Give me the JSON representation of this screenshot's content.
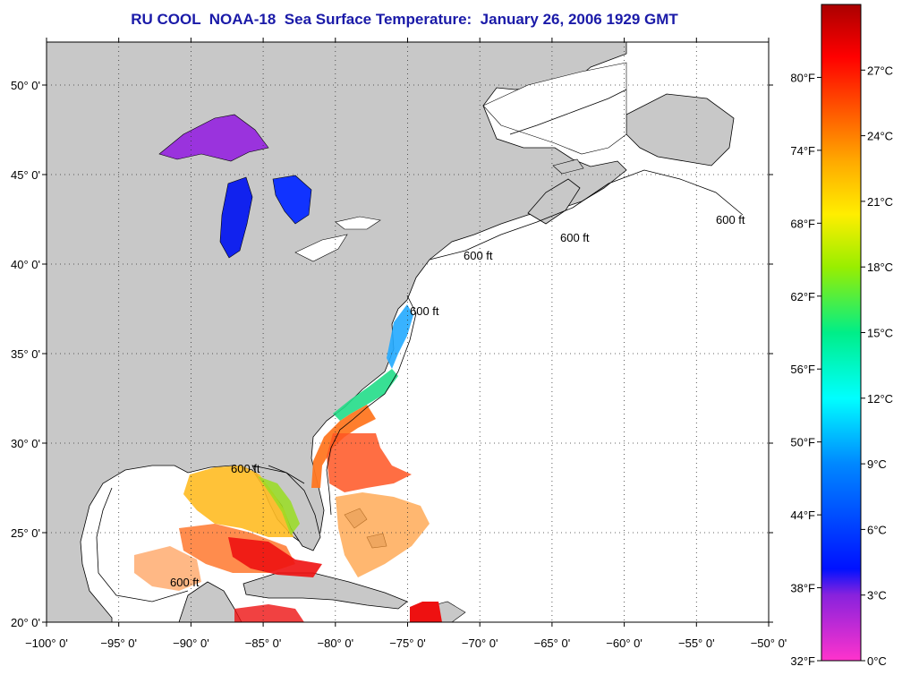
{
  "title": "RU COOL  NOAA-18  Sea Surface Temperature:  January 26, 2006 1929 GMT",
  "map": {
    "lon_range": [
      -100,
      -50
    ],
    "lat_range": [
      20,
      52.4
    ],
    "grid": "dotted",
    "lon_ticks": [
      {
        "value": -100,
        "label": "−100° 0'"
      },
      {
        "value": -95,
        "label": "−95° 0'"
      },
      {
        "value": -90,
        "label": "−90° 0'"
      },
      {
        "value": -85,
        "label": "−85° 0'"
      },
      {
        "value": -80,
        "label": "−80° 0'"
      },
      {
        "value": -75,
        "label": "−75° 0'"
      },
      {
        "value": -70,
        "label": "−70° 0'"
      },
      {
        "value": -65,
        "label": "−65° 0'"
      },
      {
        "value": -60,
        "label": "−60° 0'"
      },
      {
        "value": -55,
        "label": "−55° 0'"
      },
      {
        "value": -50,
        "label": "−50° 0'"
      }
    ],
    "lat_ticks": [
      {
        "value": 20,
        "label": "20° 0'"
      },
      {
        "value": 25,
        "label": "25° 0'"
      },
      {
        "value": 30,
        "label": "30° 0'"
      },
      {
        "value": 35,
        "label": "35° 0'"
      },
      {
        "value": 40,
        "label": "40° 0'"
      },
      {
        "value": 45,
        "label": "45° 0'"
      },
      {
        "value": 50,
        "label": "50° 0'"
      }
    ],
    "contour_label": "600 ft",
    "colors": {
      "land": "#c8c8c8",
      "ocean": "#ffffff"
    }
  },
  "colorbar": {
    "celsius_range": [
      0,
      30
    ],
    "celsius_labels": [
      {
        "value": 0,
        "label": "0°C"
      },
      {
        "value": 3,
        "label": "3°C"
      },
      {
        "value": 6,
        "label": "6°C"
      },
      {
        "value": 9,
        "label": "9°C"
      },
      {
        "value": 12,
        "label": "12°C"
      },
      {
        "value": 15,
        "label": "15°C"
      },
      {
        "value": 18,
        "label": "18°C"
      },
      {
        "value": 21,
        "label": "21°C"
      },
      {
        "value": 24,
        "label": "24°C"
      },
      {
        "value": 27,
        "label": "27°C"
      }
    ],
    "fahrenheit_labels": [
      {
        "value": 32,
        "label": "32°F"
      },
      {
        "value": 38,
        "label": "38°F"
      },
      {
        "value": 44,
        "label": "44°F"
      },
      {
        "value": 50,
        "label": "50°F"
      },
      {
        "value": 56,
        "label": "56°F"
      },
      {
        "value": 62,
        "label": "62°F"
      },
      {
        "value": 68,
        "label": "68°F"
      },
      {
        "value": 74,
        "label": "74°F"
      },
      {
        "value": 80,
        "label": "80°F"
      }
    ],
    "gradient_stops": [
      "#ff33cc",
      "#8822dd",
      "#0011ff",
      "#0088ff",
      "#00ffff",
      "#00ee88",
      "#99ee00",
      "#ffee00",
      "#ffaa00",
      "#ff5500",
      "#ff0000",
      "#aa0000"
    ]
  }
}
